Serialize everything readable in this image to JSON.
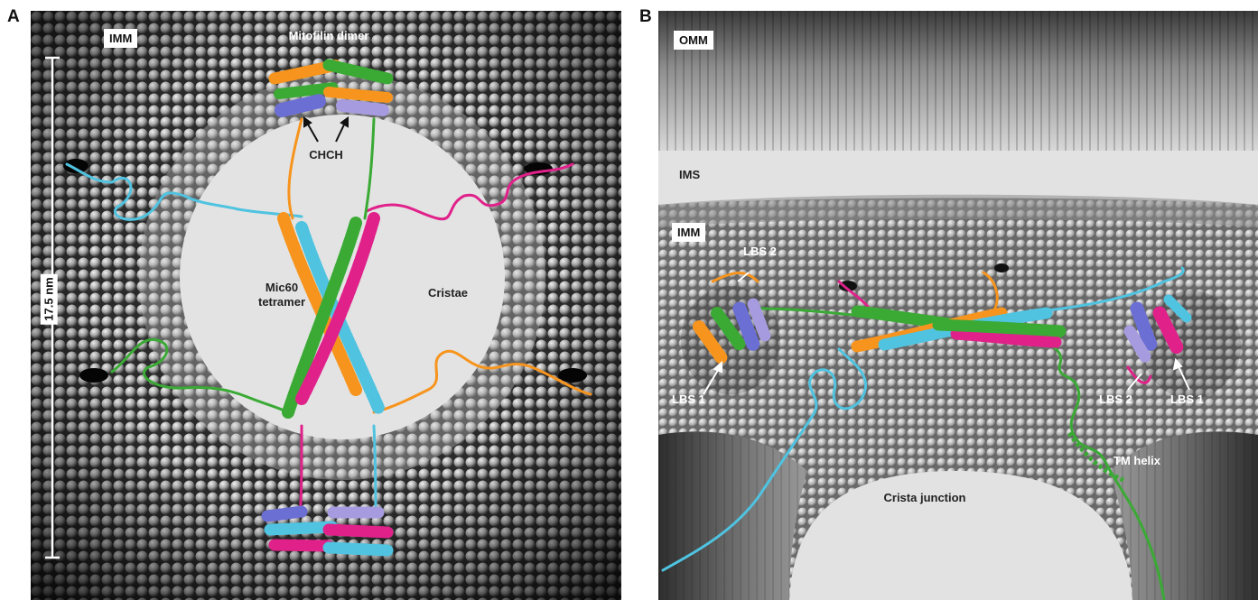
{
  "panels": {
    "a": {
      "letter": "A",
      "membrane_label": "IMM",
      "top_label": "Mitofilin dimer",
      "chch_label": "CHCH",
      "tetramer_label_line1": "Mic60",
      "tetramer_label_line2": "tetramer",
      "cristae_label": "Cristae",
      "scale_label": "17.5 nm"
    },
    "b": {
      "letter": "B",
      "outer_label": "OMM",
      "ims_label": "IMS",
      "inner_label": "IMM",
      "lbs2_left": "LBS 2",
      "lbs1_left": "LBS 1",
      "lbs2_right": "LBS 2",
      "lbs1_right": "LBS 1",
      "tm_label": "TM helix",
      "junction_label": "Crista junction"
    }
  },
  "colors": {
    "orange": "#f7941d",
    "green": "#3aaa35",
    "magenta": "#e0218a",
    "cyan": "#4fc3e0",
    "purple": "#6b6fd4",
    "lavender": "#a79be0",
    "lipid": "#9a9a9a",
    "background_dark": "#1a1a1a",
    "pore": "#e2e2e2"
  }
}
